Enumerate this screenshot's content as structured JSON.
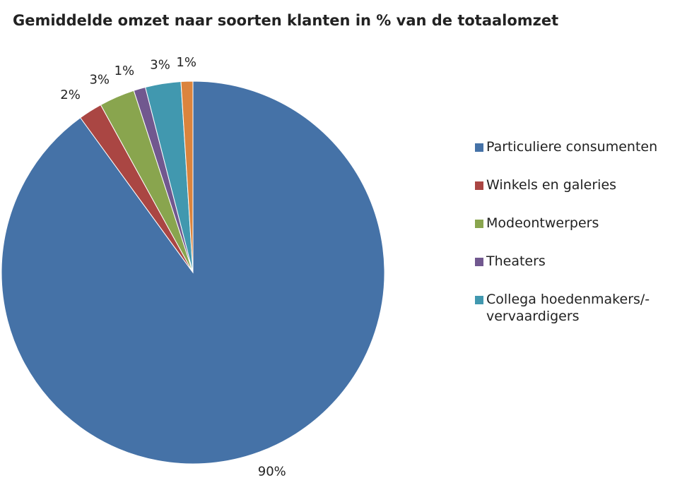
{
  "chart_data": {
    "type": "pie",
    "title": "Gemiddelde omzet naar soorten klanten in % van de totaalomzet",
    "categories": [
      "Particuliere consumenten",
      "Winkels en galeries",
      "Modeontwerpers",
      "Theaters",
      "Collega hoedenmakers/- vervaardigers",
      null
    ],
    "values": [
      90,
      2,
      3,
      1,
      3,
      1
    ],
    "value_labels": [
      "90%",
      "2%",
      "3%",
      "1%",
      "3%",
      "1%"
    ],
    "colors": [
      "#4572a7",
      "#aa4643",
      "#89a54e",
      "#71588f",
      "#4198af",
      "#db843d"
    ],
    "legend": "right"
  }
}
